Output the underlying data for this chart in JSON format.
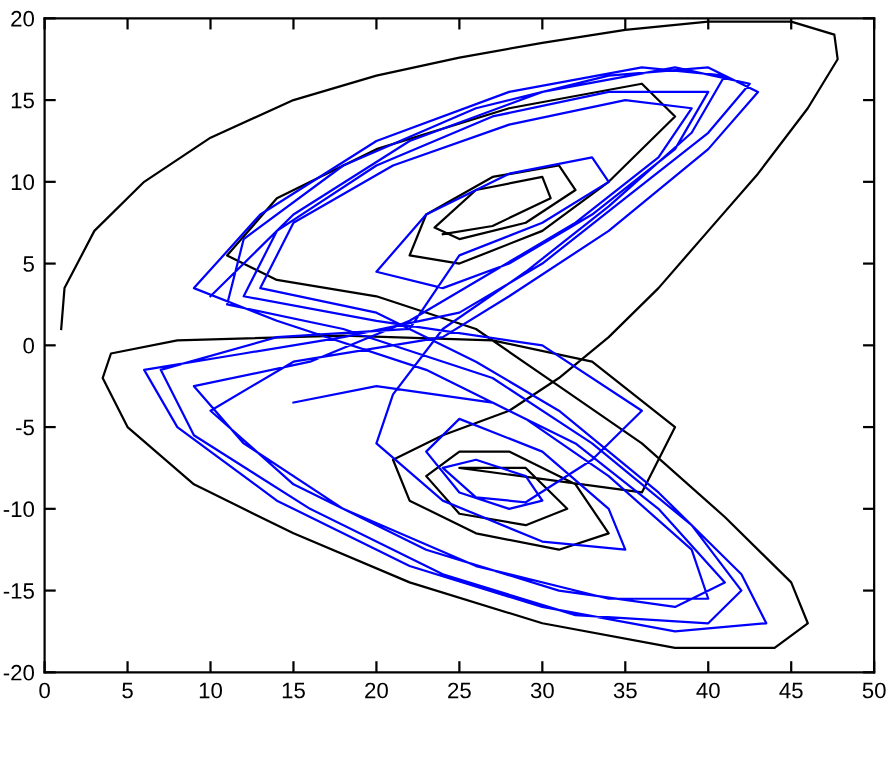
{
  "chart_data": {
    "type": "line",
    "xlim": [
      0,
      50
    ],
    "ylim": [
      -20,
      20
    ],
    "xticks": [
      0,
      5,
      10,
      15,
      20,
      25,
      30,
      35,
      40,
      45,
      50
    ],
    "yticks": [
      -20,
      -15,
      -10,
      -5,
      0,
      5,
      10,
      15,
      20
    ],
    "series": [
      {
        "color": "#000000",
        "x": [
          1,
          1.2,
          3,
          6,
          10,
          15,
          20,
          25,
          30,
          35,
          40,
          45,
          47.6,
          47.8,
          46,
          43,
          40,
          37,
          34,
          31,
          28,
          24,
          21,
          22,
          26,
          31,
          34,
          32,
          28,
          25,
          23,
          25,
          29,
          31.5,
          29,
          25,
          36,
          38,
          33,
          27,
          18,
          8,
          4,
          3.5,
          5,
          9,
          15,
          22,
          30,
          38,
          44,
          46,
          45,
          41,
          36,
          31,
          26,
          20,
          14,
          11,
          14,
          20,
          28,
          36,
          38,
          34,
          30,
          25,
          22,
          23,
          27,
          31,
          32,
          29,
          25,
          23.5,
          26,
          30,
          30.5,
          27,
          24
        ],
        "values": [
          1,
          3.5,
          7,
          10,
          12.7,
          15,
          16.5,
          17.6,
          18.5,
          19.3,
          19.8,
          19.8,
          19,
          17.5,
          14.5,
          10.5,
          7,
          3.5,
          0.5,
          -2,
          -4,
          -5.5,
          -7,
          -9.5,
          -11.5,
          -12.5,
          -11.5,
          -8.5,
          -6.5,
          -6.5,
          -8,
          -10.3,
          -11,
          -10,
          -7.5,
          -7.5,
          -9,
          -5,
          -1,
          0.3,
          0.6,
          0.3,
          -0.5,
          -2,
          -5,
          -8.5,
          -11.5,
          -14.5,
          -17,
          -18.5,
          -18.5,
          -17,
          -14.5,
          -10.5,
          -6,
          -2.5,
          1,
          3,
          4,
          5.5,
          9,
          12,
          14.5,
          16,
          14,
          10,
          7,
          5,
          5.5,
          8,
          10.3,
          11,
          9.5,
          7.5,
          6.5,
          7.2,
          9.5,
          10.3,
          9,
          7.3,
          6.8
        ]
      },
      {
        "color": "#0000ff",
        "x": [
          10,
          15,
          22,
          30,
          38,
          42.5,
          40,
          35,
          30,
          25,
          18,
          12,
          6,
          8,
          14,
          22,
          30,
          38,
          43.5,
          42,
          37,
          31,
          26,
          20,
          13,
          15,
          21,
          28,
          35,
          39,
          37,
          32,
          27,
          22,
          16,
          9,
          12,
          18,
          26,
          34,
          40,
          39,
          34,
          29,
          23,
          14,
          9,
          13,
          20,
          28,
          36,
          41,
          39,
          34,
          29,
          24,
          21,
          20,
          24,
          30,
          35,
          34,
          30,
          25,
          23,
          25,
          28,
          30,
          29,
          26,
          24,
          26,
          29,
          33,
          36,
          30,
          20,
          12,
          14,
          20,
          27,
          34,
          40,
          38,
          33,
          28,
          24,
          20,
          23,
          28,
          33,
          34,
          30,
          25,
          22,
          14,
          7,
          9,
          16,
          24,
          32,
          40,
          42,
          39,
          33,
          27,
          18,
          11,
          12,
          18,
          26,
          34,
          40,
          43,
          40,
          34,
          28,
          24,
          15,
          10,
          15,
          23,
          31,
          38,
          41,
          37,
          32,
          27,
          20,
          15
        ],
        "values": [
          3,
          8,
          12.5,
          15.5,
          17,
          16,
          13,
          9,
          5,
          2,
          0.5,
          -0.5,
          -1.5,
          -5,
          -9.5,
          -13.5,
          -16,
          -17.5,
          -17,
          -14,
          -9,
          -4,
          -1,
          2,
          3.5,
          7.5,
          11,
          13.5,
          15,
          14.5,
          11.5,
          7.5,
          4.5,
          1.5,
          -1,
          -2.5,
          -6,
          -10,
          -13.5,
          -15.5,
          -15.5,
          -12.5,
          -8,
          -4.5,
          -1.5,
          1.5,
          3.5,
          8,
          12.5,
          15.5,
          17,
          16.5,
          13,
          8.5,
          4.5,
          1,
          -3,
          -6,
          -9.5,
          -12,
          -12.5,
          -10,
          -6.5,
          -4.5,
          -6.5,
          -9,
          -10,
          -9.5,
          -8,
          -7,
          -7.5,
          -9.3,
          -9.6,
          -7,
          -4,
          0,
          1.5,
          3,
          7,
          11,
          14,
          15.5,
          15.5,
          12,
          8,
          5,
          3.5,
          4.5,
          8,
          10.5,
          11.5,
          10,
          7.5,
          5.5,
          1,
          0.5,
          -1.5,
          -5.5,
          -10,
          -14,
          -16.5,
          -17,
          -15,
          -11,
          -6,
          -2,
          1,
          2.5,
          6.5,
          11,
          14.5,
          16.5,
          17,
          15.5,
          12,
          7,
          3,
          0.5,
          -1,
          -4,
          -8.5,
          -12.5,
          -15,
          -16,
          -14.5,
          -10,
          -6,
          -3.5,
          -2.5,
          -3.5
        ]
      }
    ]
  }
}
